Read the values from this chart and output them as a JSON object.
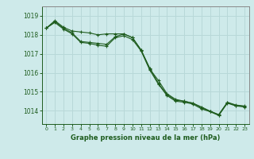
{
  "title": "Graphe pression niveau de la mer (hPa)",
  "background_color": "#ceeaea",
  "grid_color": "#b8d8d8",
  "line_color": "#1e5c1e",
  "x_ticks": [
    0,
    1,
    2,
    3,
    4,
    5,
    6,
    7,
    8,
    9,
    10,
    11,
    12,
    13,
    14,
    15,
    16,
    17,
    18,
    19,
    20,
    21,
    22,
    23
  ],
  "y_ticks": [
    1014,
    1015,
    1016,
    1017,
    1018,
    1019
  ],
  "ylim": [
    1013.3,
    1019.5
  ],
  "xlim": [
    -0.5,
    23.5
  ],
  "series1": [
    1018.35,
    1018.75,
    1018.4,
    1018.2,
    1018.15,
    1018.1,
    1018.0,
    1018.05,
    1018.05,
    1018.05,
    1017.85,
    1017.2,
    1016.25,
    1015.45,
    1014.85,
    1014.55,
    1014.5,
    1014.4,
    1014.2,
    1013.98,
    1013.8,
    1014.45,
    1014.3,
    1014.25
  ],
  "series2": [
    1018.35,
    1018.7,
    1018.35,
    1018.1,
    1017.65,
    1017.6,
    1017.55,
    1017.5,
    1017.9,
    1018.05,
    1017.85,
    1017.2,
    1016.2,
    1015.6,
    1014.9,
    1014.6,
    1014.5,
    1014.4,
    1014.15,
    1013.97,
    1013.78,
    1014.42,
    1014.28,
    1014.22
  ],
  "series3": [
    1018.35,
    1018.65,
    1018.3,
    1018.05,
    1017.6,
    1017.55,
    1017.45,
    1017.4,
    1017.85,
    1017.95,
    1017.75,
    1017.15,
    1016.15,
    1015.4,
    1014.8,
    1014.5,
    1014.45,
    1014.35,
    1014.1,
    1013.95,
    1013.75,
    1014.4,
    1014.25,
    1014.2
  ]
}
